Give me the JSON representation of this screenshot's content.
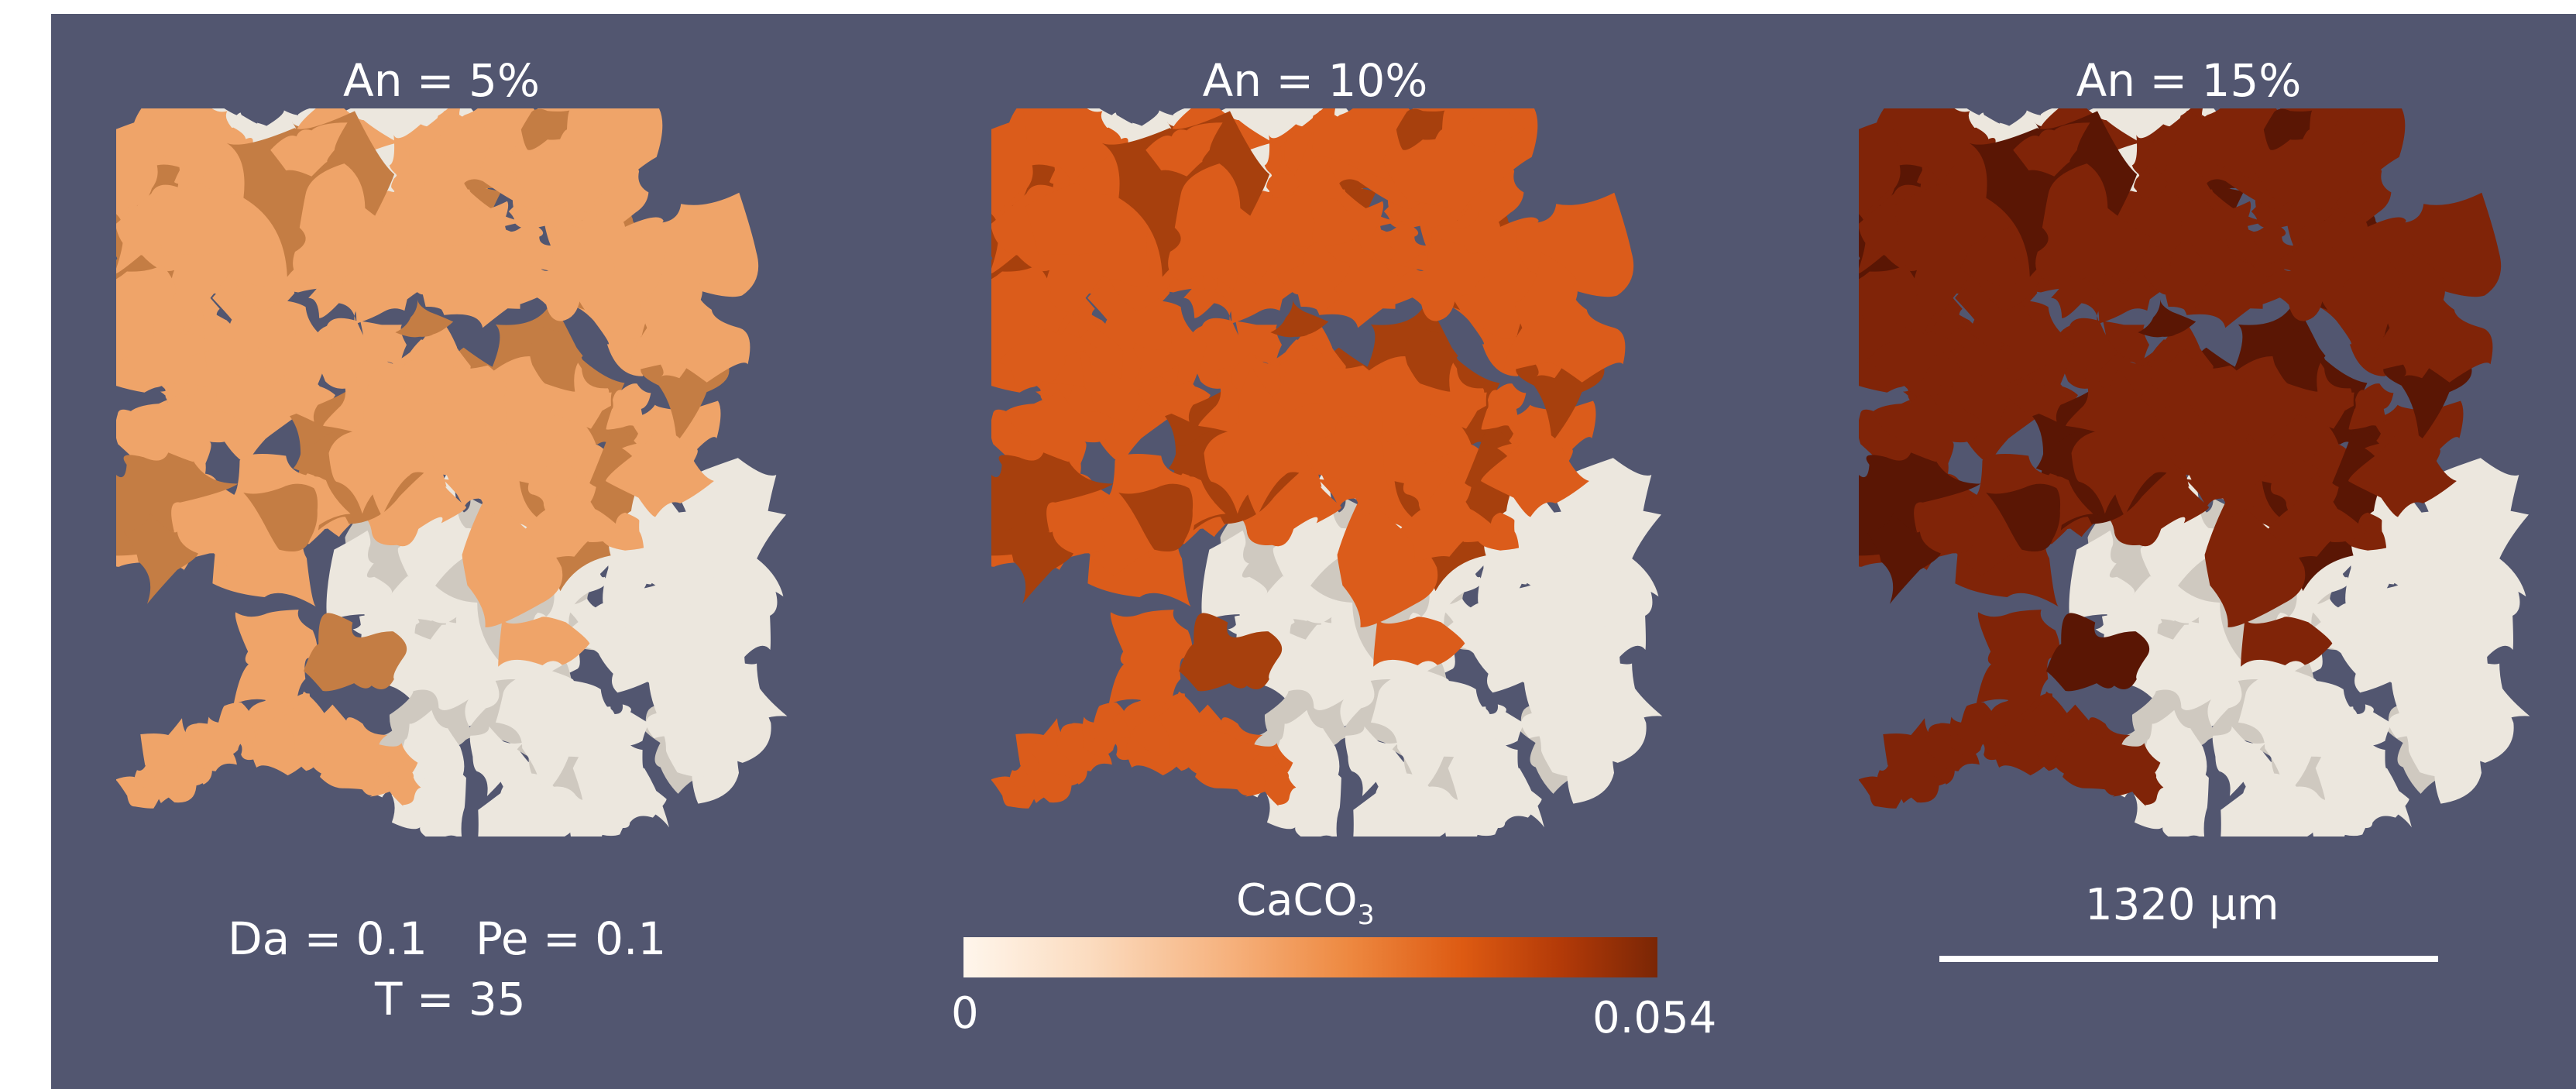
{
  "panels": [
    {
      "title": "An = 5%",
      "fill": "#efa469",
      "shade": "#c47d44"
    },
    {
      "title": "An = 10%",
      "fill": "#db5c1b",
      "shade": "#a7400d"
    },
    {
      "title": "An = 15%",
      "fill": "#802408",
      "shade": "#5a1604"
    }
  ],
  "pore_white": "#ece7de",
  "params": {
    "line1_a": "Da = 0.1",
    "line1_b": "Pe = 0.1",
    "line2": "T = 35"
  },
  "colorbar": {
    "label_main": "CaCO",
    "label_sub": "3",
    "min": "0",
    "max": "0.054"
  },
  "scalebar": {
    "label": "1320  μm"
  }
}
